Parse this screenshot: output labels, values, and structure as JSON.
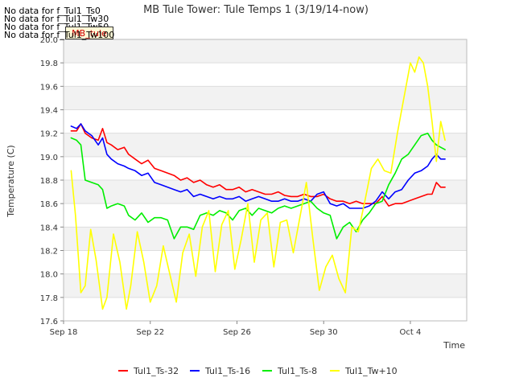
{
  "no_data_messages": [
    "No data for f_Tul1_Ts0",
    "No data for f_Tul1_Tw30",
    "No data for f_Tul1_Tw50",
    "No data for f_Tul1_Tw100"
  ],
  "site_badge": "MB_tule",
  "chart_data": {
    "type": "line",
    "title": "MB Tule Tower: Tule Temps 1 (3/19/14-now)",
    "xlabel": "Time",
    "ylabel": "Temperature (C)",
    "xlim": [
      0,
      18.6
    ],
    "ylim": [
      17.6,
      20.0
    ],
    "x_ticks": [
      {
        "value": 0,
        "label": "Sep 18"
      },
      {
        "value": 4,
        "label": "Sep 22"
      },
      {
        "value": 8,
        "label": "Sep 26"
      },
      {
        "value": 12,
        "label": "Sep 30"
      },
      {
        "value": 16,
        "label": "Oct 4"
      }
    ],
    "y_ticks": [
      17.6,
      17.8,
      18.0,
      18.2,
      18.4,
      18.6,
      18.8,
      19.0,
      19.2,
      19.4,
      19.6,
      19.8,
      20.0
    ],
    "y_tick_labels": [
      "17.6",
      "17.8",
      "18.0",
      "18.2",
      "18.4",
      "18.6",
      "18.8",
      "19.0",
      "19.2",
      "19.4",
      "19.6",
      "19.8",
      "20.0"
    ],
    "grid": true,
    "legend_position": "bottom",
    "series": [
      {
        "name": "Tul1_Ts-32",
        "color": "#ff0000",
        "x": [
          0.35,
          0.6,
          0.8,
          1.0,
          1.3,
          1.6,
          1.8,
          2.0,
          2.2,
          2.5,
          2.8,
          3.0,
          3.3,
          3.6,
          3.9,
          4.2,
          4.5,
          4.8,
          5.1,
          5.4,
          5.7,
          6.0,
          6.3,
          6.6,
          6.9,
          7.2,
          7.5,
          7.8,
          8.1,
          8.4,
          8.7,
          9.0,
          9.3,
          9.6,
          9.9,
          10.2,
          10.5,
          10.8,
          11.1,
          11.4,
          11.7,
          12.0,
          12.3,
          12.6,
          12.9,
          13.2,
          13.5,
          13.8,
          14.1,
          14.4,
          14.7,
          15.0,
          15.3,
          15.6,
          15.9,
          16.2,
          16.5,
          16.8,
          17.0,
          17.2,
          17.4,
          17.6
        ],
        "y": [
          19.22,
          19.22,
          19.28,
          19.2,
          19.16,
          19.14,
          19.24,
          19.12,
          19.1,
          19.06,
          19.08,
          19.02,
          18.98,
          18.94,
          18.97,
          18.9,
          18.88,
          18.86,
          18.84,
          18.8,
          18.82,
          18.78,
          18.8,
          18.76,
          18.74,
          18.76,
          18.72,
          18.72,
          18.74,
          18.7,
          18.72,
          18.7,
          18.68,
          18.68,
          18.7,
          18.67,
          18.66,
          18.66,
          18.68,
          18.66,
          18.66,
          18.68,
          18.64,
          18.62,
          18.62,
          18.6,
          18.62,
          18.6,
          18.6,
          18.6,
          18.66,
          18.58,
          18.6,
          18.6,
          18.62,
          18.64,
          18.66,
          18.68,
          18.68,
          18.78,
          18.74,
          18.74
        ]
      },
      {
        "name": "Tul1_Ts-16",
        "color": "#0000ff",
        "x": [
          0.35,
          0.6,
          0.8,
          1.0,
          1.3,
          1.6,
          1.8,
          2.0,
          2.2,
          2.5,
          2.8,
          3.0,
          3.3,
          3.6,
          3.9,
          4.2,
          4.5,
          4.8,
          5.1,
          5.4,
          5.7,
          6.0,
          6.3,
          6.6,
          6.9,
          7.2,
          7.5,
          7.8,
          8.1,
          8.4,
          8.7,
          9.0,
          9.3,
          9.6,
          9.9,
          10.2,
          10.5,
          10.8,
          11.1,
          11.4,
          11.7,
          12.0,
          12.3,
          12.6,
          12.9,
          13.2,
          13.5,
          13.8,
          14.1,
          14.4,
          14.7,
          15.0,
          15.3,
          15.6,
          15.9,
          16.2,
          16.5,
          16.8,
          17.0,
          17.2,
          17.4,
          17.6
        ],
        "y": [
          19.26,
          19.24,
          19.28,
          19.22,
          19.18,
          19.1,
          19.16,
          19.02,
          18.98,
          18.94,
          18.92,
          18.9,
          18.88,
          18.84,
          18.86,
          18.78,
          18.76,
          18.74,
          18.72,
          18.7,
          18.72,
          18.66,
          18.68,
          18.66,
          18.64,
          18.66,
          18.64,
          18.64,
          18.66,
          18.62,
          18.64,
          18.66,
          18.64,
          18.62,
          18.62,
          18.64,
          18.62,
          18.62,
          18.64,
          18.62,
          18.68,
          18.7,
          18.6,
          18.58,
          18.6,
          18.56,
          18.56,
          18.56,
          18.58,
          18.62,
          18.7,
          18.64,
          18.7,
          18.72,
          18.8,
          18.86,
          18.88,
          18.92,
          18.98,
          19.02,
          18.98,
          18.98
        ]
      },
      {
        "name": "Tul1_Ts-8",
        "color": "#00ee00",
        "x": [
          0.35,
          0.6,
          0.8,
          1.0,
          1.3,
          1.6,
          1.8,
          2.0,
          2.2,
          2.5,
          2.8,
          3.0,
          3.3,
          3.6,
          3.9,
          4.2,
          4.5,
          4.8,
          5.1,
          5.4,
          5.7,
          6.0,
          6.3,
          6.6,
          6.9,
          7.2,
          7.5,
          7.8,
          8.1,
          8.4,
          8.7,
          9.0,
          9.3,
          9.6,
          9.9,
          10.2,
          10.5,
          10.8,
          11.1,
          11.4,
          11.7,
          12.0,
          12.3,
          12.6,
          12.9,
          13.2,
          13.5,
          13.8,
          14.1,
          14.4,
          14.7,
          15.0,
          15.3,
          15.6,
          15.9,
          16.2,
          16.5,
          16.8,
          17.0,
          17.2,
          17.4,
          17.6
        ],
        "y": [
          19.16,
          19.14,
          19.1,
          18.8,
          18.78,
          18.76,
          18.72,
          18.56,
          18.58,
          18.6,
          18.58,
          18.5,
          18.46,
          18.52,
          18.44,
          18.48,
          18.48,
          18.46,
          18.3,
          18.4,
          18.4,
          18.38,
          18.5,
          18.52,
          18.5,
          18.54,
          18.52,
          18.46,
          18.54,
          18.56,
          18.5,
          18.56,
          18.54,
          18.52,
          18.56,
          18.58,
          18.56,
          18.58,
          18.6,
          18.62,
          18.56,
          18.52,
          18.5,
          18.3,
          18.4,
          18.44,
          18.36,
          18.46,
          18.52,
          18.6,
          18.62,
          18.76,
          18.86,
          18.98,
          19.02,
          19.1,
          19.18,
          19.2,
          19.14,
          19.1,
          19.08,
          19.06
        ]
      },
      {
        "name": "Tul1_Tw+10",
        "color": "#ffff00",
        "x": [
          0.35,
          0.55,
          0.8,
          1.0,
          1.25,
          1.5,
          1.8,
          2.0,
          2.3,
          2.6,
          2.9,
          3.1,
          3.4,
          3.7,
          4.0,
          4.3,
          4.6,
          4.9,
          5.2,
          5.5,
          5.8,
          6.1,
          6.4,
          6.7,
          7.0,
          7.3,
          7.6,
          7.9,
          8.2,
          8.5,
          8.8,
          9.1,
          9.4,
          9.7,
          10.0,
          10.3,
          10.6,
          10.9,
          11.2,
          11.5,
          11.8,
          12.1,
          12.4,
          12.7,
          13.0,
          13.3,
          13.6,
          13.9,
          14.2,
          14.5,
          14.8,
          15.1,
          15.4,
          15.7,
          16.0,
          16.2,
          16.4,
          16.6,
          16.8,
          17.0,
          17.2,
          17.4,
          17.6
        ],
        "y": [
          18.88,
          18.5,
          17.84,
          17.9,
          18.38,
          18.12,
          17.7,
          17.8,
          18.34,
          18.1,
          17.7,
          17.9,
          18.36,
          18.1,
          17.76,
          17.9,
          18.24,
          18.0,
          17.76,
          18.18,
          18.34,
          17.98,
          18.4,
          18.54,
          18.02,
          18.42,
          18.54,
          18.04,
          18.3,
          18.6,
          18.1,
          18.46,
          18.52,
          18.06,
          18.44,
          18.46,
          18.18,
          18.48,
          18.78,
          18.3,
          17.86,
          18.06,
          18.16,
          17.96,
          17.84,
          18.4,
          18.36,
          18.62,
          18.9,
          18.98,
          18.88,
          18.86,
          19.2,
          19.5,
          19.8,
          19.72,
          19.85,
          19.8,
          19.6,
          19.3,
          18.96,
          19.3,
          19.14
        ]
      }
    ]
  }
}
